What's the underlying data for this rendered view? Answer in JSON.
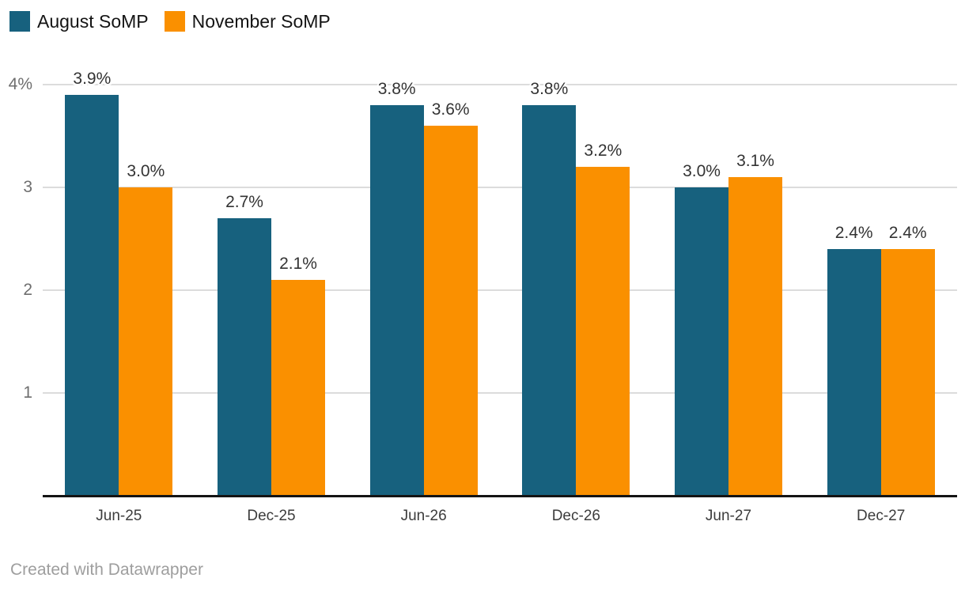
{
  "chart_data": {
    "type": "bar",
    "title": "",
    "xlabel": "",
    "ylabel": "",
    "categories": [
      "Jun-25",
      "Dec-25",
      "Jun-26",
      "Dec-26",
      "Jun-27",
      "Dec-27"
    ],
    "series": [
      {
        "name": "August SoMP",
        "color": "#17617e",
        "values": [
          3.9,
          2.7,
          3.8,
          3.8,
          3.0,
          2.4
        ],
        "labels": [
          "3.9%",
          "2.7%",
          "3.8%",
          "3.8%",
          "3.0%",
          "2.4%"
        ]
      },
      {
        "name": "November SoMP",
        "color": "#fa9000",
        "values": [
          3.0,
          2.1,
          3.6,
          3.2,
          3.1,
          2.4
        ],
        "labels": [
          "3.0%",
          "2.1%",
          "3.6%",
          "3.2%",
          "3.1%",
          "2.4%"
        ]
      }
    ],
    "y_ticks": [
      {
        "value": 1,
        "label": "1"
      },
      {
        "value": 2,
        "label": "2"
      },
      {
        "value": 3,
        "label": "3"
      },
      {
        "value": 4,
        "label": "4%"
      }
    ],
    "ylim": [
      0,
      4.35
    ],
    "grid": true,
    "legend_position": "top-left",
    "value_labels_shown": true
  },
  "colors": {
    "grid": "#dcdcdc",
    "axis_line": "#141414",
    "value_label": "#333333",
    "x_label": "#3c3c3c",
    "y_label": "#6e6e6e",
    "legend_text": "#141414",
    "credit_text": "#9e9e9e",
    "background": "#ffffff"
  },
  "footer": {
    "credit": "Created with Datawrapper"
  }
}
